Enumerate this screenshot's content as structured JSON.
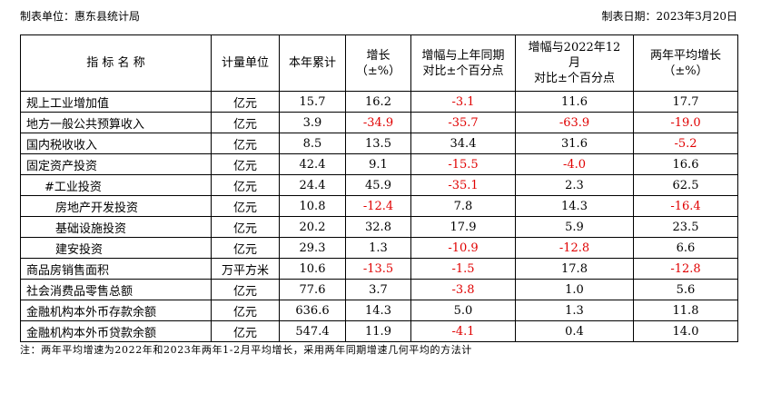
{
  "header": {
    "unit": "制表单位：惠东县统计局",
    "date": "制表日期：2023年3月20日"
  },
  "table": {
    "columns": [
      [
        "指 标 名 称"
      ],
      [
        "计量单位"
      ],
      [
        "本年累计"
      ],
      [
        "增长",
        "（±%）"
      ],
      [
        "增幅与上年同期",
        "对比±个百分点"
      ],
      [
        "增幅与2022年12",
        "月",
        "对比±个百分点"
      ],
      [
        "两年平均增长",
        "（±%）"
      ]
    ],
    "rows": [
      [
        "规上工业增加值",
        "亿元",
        "15.7",
        "16.2",
        "-3.1",
        "11.6",
        "17.7"
      ],
      [
        "地方一般公共预算收入",
        "亿元",
        "3.9",
        "-34.9",
        "-35.7",
        "-63.9",
        "-19.0"
      ],
      [
        "国内税收收入",
        "亿元",
        "8.5",
        "13.5",
        "34.4",
        "31.6",
        "-5.2"
      ],
      [
        "固定资产投资",
        "亿元",
        "42.4",
        "9.1",
        "-15.5",
        "-4.0",
        "16.6"
      ],
      [
        "#工业投资",
        "亿元",
        "24.4",
        "45.9",
        "-35.1",
        "2.3",
        "62.5"
      ],
      [
        "房地产开发投资",
        "亿元",
        "10.8",
        "-12.4",
        "7.8",
        "14.3",
        "-16.4"
      ],
      [
        "基础设施投资",
        "亿元",
        "20.2",
        "32.8",
        "17.9",
        "5.9",
        "23.5"
      ],
      [
        "建安投资",
        "亿元",
        "29.3",
        "1.3",
        "-10.9",
        "-12.8",
        "6.6"
      ],
      [
        "商品房销售面积",
        "万平方米",
        "10.6",
        "-13.5",
        "-1.5",
        "17.8",
        "-12.8"
      ],
      [
        "社会消费品零售总额",
        "亿元",
        "77.6",
        "3.7",
        "-3.8",
        "1.0",
        "5.6"
      ],
      [
        "金融机构本外币存款余额",
        "亿元",
        "636.6",
        "14.3",
        "5.0",
        "1.3",
        "11.8"
      ],
      [
        "金融机构本外币贷款余额",
        "亿元",
        "547.4",
        "11.9",
        "-4.1",
        "0.4",
        "14.0"
      ]
    ]
  },
  "note": "注：两年平均增速为2022年和2023年两年1-2月平均增长，采用两年同期增速几何平均的方法计"
}
